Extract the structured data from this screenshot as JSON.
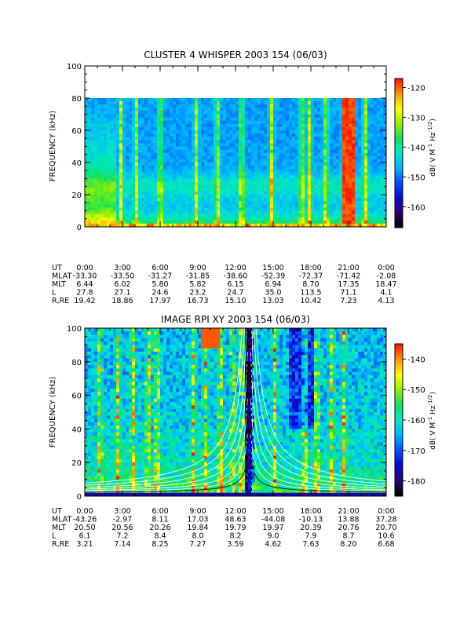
{
  "chart_data": [
    {
      "type": "heatmap",
      "title": "CLUSTER 4 WHISPER 2003 154 (06/03)",
      "ylabel": "FREQUENCY (kHz)",
      "ylim": [
        0,
        100
      ],
      "yticks": [
        "0",
        "20",
        "40",
        "60",
        "80",
        "100"
      ],
      "data_ylim": [
        0,
        80
      ],
      "colorbar": {
        "label_prefix": "dB( V M",
        "label_exp1": "-1",
        "label_mid": " Hz",
        "label_exp2": "-1/2",
        "label_suffix": ")",
        "range": [
          -167,
          -117
        ],
        "ticks": [
          "-120",
          "-130",
          "-140",
          "-150",
          "-160"
        ],
        "tick_values": [
          -120,
          -130,
          -140,
          -150,
          -160
        ]
      },
      "ephemeris": {
        "UT": [
          "0:00",
          "3:00",
          "6:00",
          "9:00",
          "12:00",
          "15:00",
          "18:00",
          "21:00",
          "0:00"
        ],
        "MLAT": [
          "-33.30",
          "-33.50",
          "-31.27",
          "-31.85",
          "-38.60",
          "-52.39",
          "-72.37",
          "-71.42",
          "-2.08"
        ],
        "MLT": [
          "6.44",
          "6.02",
          "5.80",
          "5.82",
          "6.15",
          "6.94",
          "8.70",
          "17.35",
          "18.47"
        ],
        "L": [
          "27.8",
          "27.1",
          "24.6",
          "23.2",
          "24.7",
          "35.0",
          "113.5",
          "71.1",
          "4.1"
        ],
        "R,RE": [
          "19.42",
          "18.86",
          "17.97",
          "16.73",
          "15.10",
          "13.03",
          "10.42",
          "7.23",
          "4.13"
        ]
      }
    },
    {
      "type": "heatmap",
      "title": "IMAGE RPI XY 2003 154 (06/03)",
      "ylabel": "FREQUENCY (kHz)",
      "ylim": [
        0,
        100
      ],
      "yticks": [
        "0",
        "20",
        "40",
        "60",
        "80",
        "100"
      ],
      "data_ylim": [
        0,
        100
      ],
      "colorbar": {
        "label_prefix": "dB( V M",
        "label_exp1": "-1",
        "label_mid": " Hz",
        "label_exp2": "-1/2",
        "label_suffix": ")",
        "range": [
          -185,
          -135
        ],
        "ticks": [
          "-140",
          "-150",
          "-160",
          "-170",
          "-180"
        ],
        "tick_values": [
          -140,
          -150,
          -160,
          -170,
          -180
        ]
      },
      "ephemeris": {
        "UT": [
          "0:00",
          "3:00",
          "6:00",
          "9:00",
          "12:00",
          "15:00",
          "18:00",
          "21:00",
          "0:00"
        ],
        "MLAT": [
          "-43.26",
          "-2.97",
          "8.11",
          "17.03",
          "48.63",
          "-44.08",
          "-10.13",
          "13.88",
          "37.28"
        ],
        "MLT": [
          "20.50",
          "20.56",
          "20.26",
          "19.84",
          "19.79",
          "19.97",
          "20.39",
          "20.76",
          "20.70"
        ],
        "L": [
          "6.1",
          "7.2",
          "8.4",
          "8.0",
          "8.2",
          "9.0",
          "7.9",
          "8.7",
          "10.6"
        ],
        "R,RE": [
          "3.21",
          "7.14",
          "8.25",
          "7.27",
          "3.59",
          "4.62",
          "7.63",
          "8.20",
          "6.68"
        ]
      }
    }
  ],
  "colors": {
    "colormap": [
      "#000000",
      "#30007a",
      "#0008d8",
      "#0050ff",
      "#00b4ff",
      "#00e8c8",
      "#10e060",
      "#90f000",
      "#ffff00",
      "#ff9800",
      "#ff1800"
    ]
  }
}
